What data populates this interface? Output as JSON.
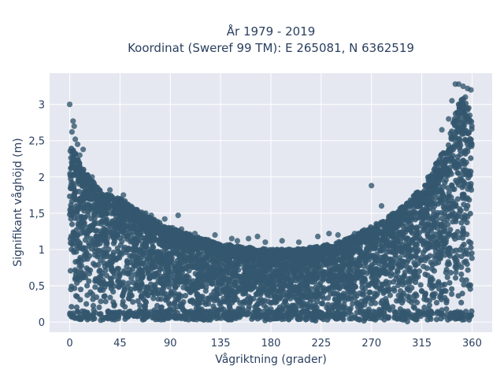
{
  "chart_data": {
    "type": "scatter",
    "title_line1": "År 1979 - 2019",
    "title_line2": "Koordinat (Sweref 99 TM): E 265081, N 6362519",
    "xlabel": "Vågriktning (grader)",
    "ylabel": "Signifikant våghöjd (m)",
    "xlim": [
      -18,
      378
    ],
    "ylim": [
      -0.14,
      3.43
    ],
    "x_ticks": [
      0,
      45,
      90,
      135,
      180,
      225,
      270,
      315,
      360
    ],
    "x_tick_labels": [
      "0",
      "45",
      "90",
      "135",
      "180",
      "225",
      "270",
      "315",
      "360"
    ],
    "y_ticks": [
      0,
      0.5,
      1,
      1.5,
      2,
      2.5,
      3
    ],
    "y_tick_labels": [
      "0",
      "0,5",
      "1",
      "1,5",
      "2",
      "2,5",
      "3"
    ],
    "grid": true,
    "marker_color": "#34576f",
    "plot_background": "#e5e8f0",
    "envelope": {
      "x": [
        0,
        3,
        10,
        20,
        30,
        45,
        60,
        75,
        90,
        105,
        120,
        135,
        150,
        165,
        180,
        195,
        210,
        225,
        240,
        255,
        270,
        285,
        300,
        315,
        330,
        340,
        345,
        350,
        355,
        360
      ],
      "upper": [
        2.35,
        2.45,
        2.15,
        1.95,
        1.8,
        1.72,
        1.55,
        1.42,
        1.3,
        1.22,
        1.15,
        1.08,
        1.05,
        1.02,
        1.0,
        1.0,
        1.02,
        1.05,
        1.1,
        1.2,
        1.32,
        1.45,
        1.62,
        1.85,
        2.25,
        2.55,
        2.9,
        3.1,
        3.05,
        2.75
      ]
    },
    "points": [
      [
        0,
        3.0
      ],
      [
        3,
        2.77
      ],
      [
        4,
        2.7
      ],
      [
        2,
        2.62
      ],
      [
        5,
        2.52
      ],
      [
        7,
        2.45
      ],
      [
        12,
        2.38
      ],
      [
        9,
        2.3
      ],
      [
        20,
        2.0
      ],
      [
        25,
        1.85
      ],
      [
        36,
        1.82
      ],
      [
        48,
        1.75
      ],
      [
        60,
        1.55
      ],
      [
        68,
        1.5
      ],
      [
        73,
        1.47
      ],
      [
        85,
        1.42
      ],
      [
        97,
        1.47
      ],
      [
        92,
        1.3
      ],
      [
        100,
        1.28
      ],
      [
        112,
        1.22
      ],
      [
        130,
        1.2
      ],
      [
        145,
        1.15
      ],
      [
        150,
        1.12
      ],
      [
        160,
        1.15
      ],
      [
        168,
        1.18
      ],
      [
        175,
        1.1
      ],
      [
        190,
        1.12
      ],
      [
        205,
        1.1
      ],
      [
        222,
        1.18
      ],
      [
        232,
        1.22
      ],
      [
        240,
        1.2
      ],
      [
        255,
        1.22
      ],
      [
        270,
        1.88
      ],
      [
        279,
        1.6
      ],
      [
        285,
        1.4
      ],
      [
        300,
        1.55
      ],
      [
        310,
        1.78
      ],
      [
        322,
        1.9
      ],
      [
        326,
        2.1
      ],
      [
        333,
        2.65
      ],
      [
        339,
        2.8
      ],
      [
        342,
        3.05
      ],
      [
        345,
        3.28
      ],
      [
        348,
        3.28
      ],
      [
        352,
        3.25
      ],
      [
        356,
        3.22
      ],
      [
        359,
        3.2
      ],
      [
        357,
        2.95
      ],
      [
        358,
        2.85
      ],
      [
        354,
        3.1
      ]
    ]
  }
}
